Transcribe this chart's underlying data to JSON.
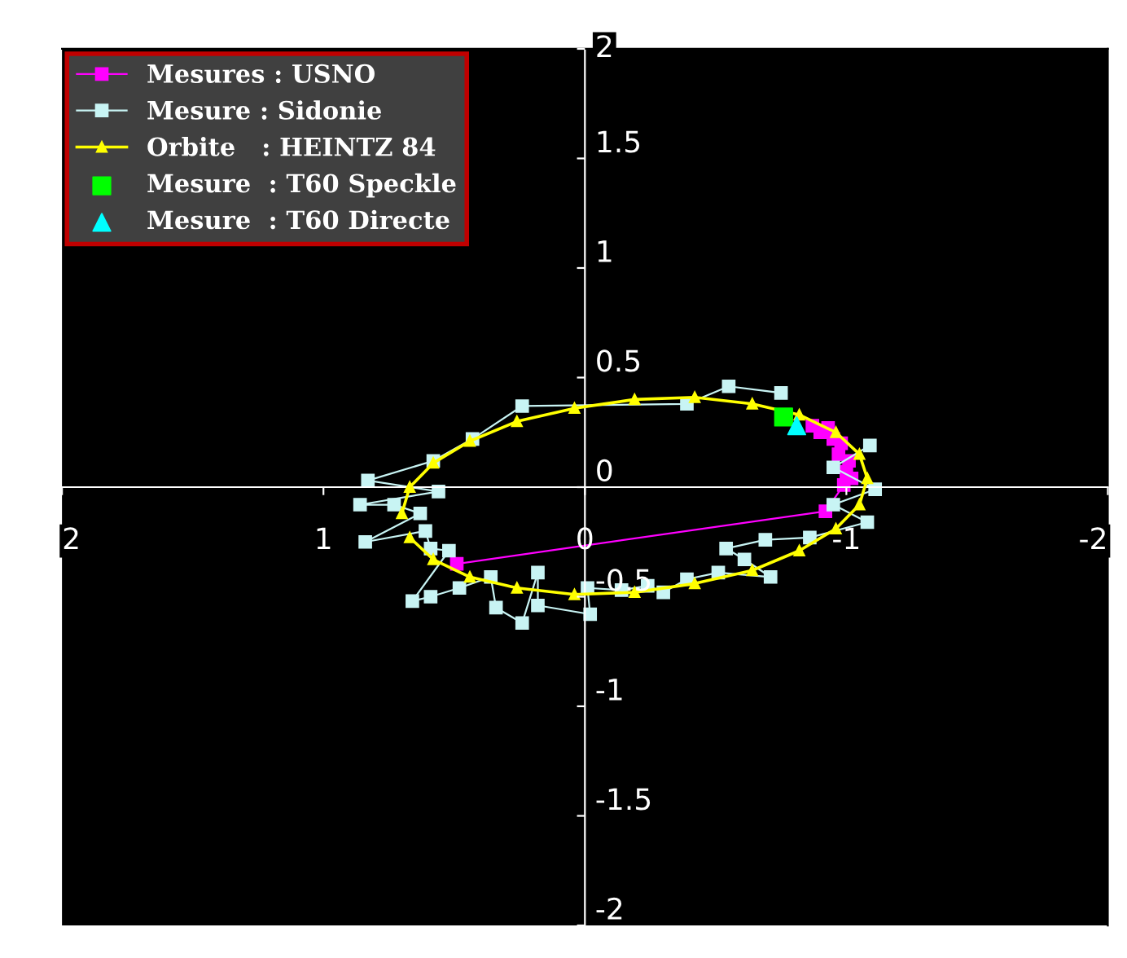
{
  "chart_data": {
    "type": "line",
    "xlim": [
      2,
      -2
    ],
    "ylim": [
      -2,
      2
    ],
    "xticks": [
      2,
      1,
      0,
      -1,
      -2
    ],
    "yticks": [
      -2,
      -1.5,
      -1,
      -0.5,
      0,
      0.5,
      1,
      1.5,
      2
    ],
    "grid": false,
    "legend": "top left",
    "series": [
      {
        "name": "Mesures : USNO",
        "marker": "square",
        "line_style": "solid",
        "color": "#ff00ff",
        "x": [
          -0.87,
          -0.9,
          -0.93,
          -0.95,
          -0.98,
          -0.97,
          -1.01,
          -1.0,
          -1.02,
          -0.99,
          -0.92,
          0.49
        ],
        "values": [
          0.28,
          0.25,
          0.27,
          0.22,
          0.2,
          0.15,
          0.12,
          0.07,
          0.04,
          0.01,
          -0.11,
          -0.35
        ]
      },
      {
        "name": "Mesure : Sidonie",
        "marker": "square",
        "line_style": "solid",
        "color": "#c8f4f4",
        "x": [
          -0.75,
          -0.55,
          -0.39,
          0.24,
          0.43,
          0.58,
          0.83,
          0.56,
          0.86,
          0.73,
          0.63,
          0.84,
          0.61,
          0.59,
          0.52,
          0.66,
          0.59,
          0.48,
          0.36,
          0.34,
          0.24,
          0.18,
          0.18,
          -0.02,
          -0.01,
          -0.14,
          -0.24,
          -0.3,
          -0.39,
          -0.51,
          -0.71,
          -0.61,
          -0.54,
          -0.69,
          -0.86,
          -1.08,
          -0.95,
          -1.11,
          -0.95,
          -1.09
        ],
        "values": [
          0.43,
          0.46,
          0.38,
          0.37,
          0.22,
          0.12,
          0.03,
          -0.02,
          -0.08,
          -0.08,
          -0.12,
          -0.25,
          -0.2,
          -0.28,
          -0.29,
          -0.52,
          -0.5,
          -0.46,
          -0.41,
          -0.55,
          -0.62,
          -0.39,
          -0.54,
          -0.58,
          -0.46,
          -0.47,
          -0.45,
          -0.48,
          -0.42,
          -0.39,
          -0.41,
          -0.33,
          -0.28,
          -0.24,
          -0.23,
          -0.16,
          -0.08,
          -0.01,
          0.09,
          0.19
        ]
      },
      {
        "name": "Orbite   : HEINTZ 84",
        "marker": "triangle",
        "line_style": "solid",
        "color": "#ffff00",
        "x": [
          0.7,
          0.67,
          0.58,
          0.44,
          0.26,
          0.04,
          -0.19,
          -0.42,
          -0.64,
          -0.82,
          -0.96,
          -1.05,
          -1.08,
          -1.05,
          -0.96,
          -0.82,
          -0.64,
          -0.42,
          -0.19,
          0.04,
          0.26,
          0.44,
          0.58,
          0.67
        ],
        "values": [
          -0.12,
          0.0,
          0.11,
          0.21,
          0.3,
          0.36,
          0.4,
          0.41,
          0.38,
          0.33,
          0.25,
          0.15,
          0.04,
          -0.08,
          -0.19,
          -0.29,
          -0.38,
          -0.44,
          -0.48,
          -0.49,
          -0.46,
          -0.41,
          -0.33,
          -0.23
        ]
      },
      {
        "name": "Mesure  : T60 Speckle",
        "type": "scatter",
        "marker": "square",
        "color": "#00ff00",
        "x": [
          -0.76
        ],
        "values": [
          0.32
        ]
      },
      {
        "name": "Mesure  : T60 Directe",
        "type": "scatter",
        "marker": "triangle",
        "color": "#00ffff",
        "x": [
          -0.81
        ],
        "values": [
          0.28
        ]
      }
    ]
  }
}
